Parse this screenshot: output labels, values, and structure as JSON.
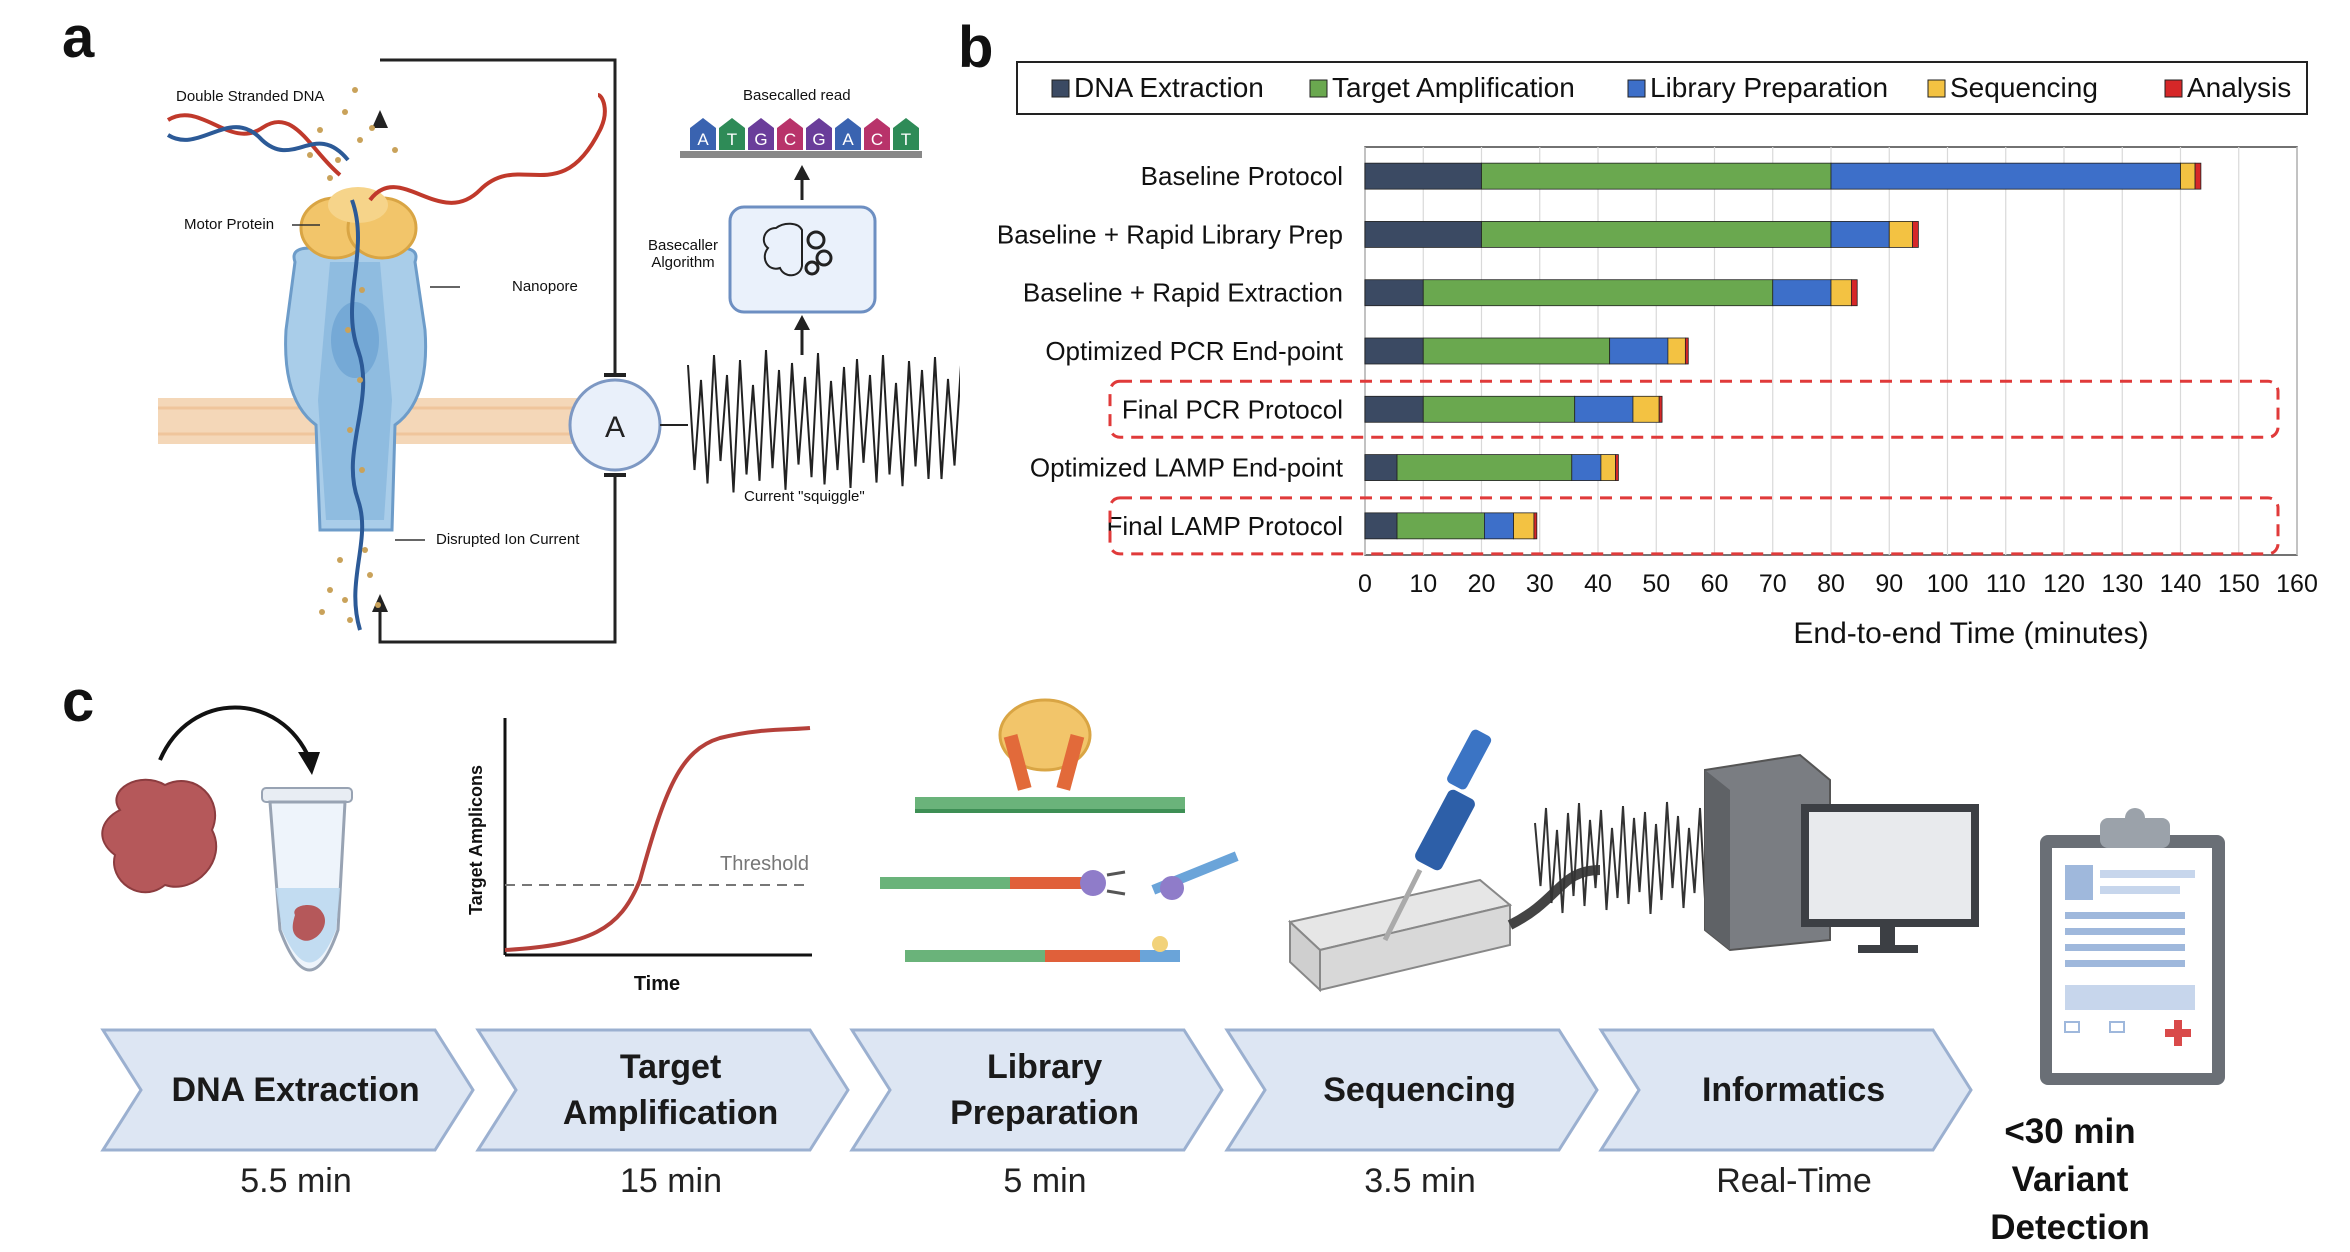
{
  "panels": {
    "a": "a",
    "b": "b",
    "c": "c"
  },
  "panel_a": {
    "labels": {
      "dsdna": "Double Stranded DNA",
      "motor": "Motor Protein",
      "nanopore": "Nanopore",
      "ion": "Disrupted Ion Current",
      "ammeter": "A",
      "basecaller_line1": "Basecaller",
      "basecaller_line2": "Algorithm",
      "basecalled_read": "Basecalled read",
      "squiggle": "Current \"squiggle\""
    },
    "bases": [
      {
        "letter": "A",
        "color": "#3a63b0"
      },
      {
        "letter": "T",
        "color": "#2e8b57"
      },
      {
        "letter": "G",
        "color": "#6a3d9a"
      },
      {
        "letter": "C",
        "color": "#b8336a"
      },
      {
        "letter": "G",
        "color": "#6a3d9a"
      },
      {
        "letter": "A",
        "color": "#3a63b0"
      },
      {
        "letter": "C",
        "color": "#b8336a"
      },
      {
        "letter": "T",
        "color": "#2e8b57"
      }
    ]
  },
  "chart_data": {
    "type": "bar",
    "orientation": "horizontal",
    "stacked": true,
    "categories": [
      "Baseline Protocol",
      "Baseline + Rapid Library Prep",
      "Baseline + Rapid Extraction",
      "Optimized PCR End-point",
      "Final PCR Protocol",
      "Optimized LAMP End-point",
      "Final LAMP Protocol"
    ],
    "series": [
      {
        "name": "DNA Extraction",
        "color": "#3b4a63",
        "values": [
          20,
          20,
          10,
          10,
          10,
          5.5,
          5.5
        ]
      },
      {
        "name": "Target Amplification",
        "color": "#6aa84f",
        "values": [
          60,
          60,
          60,
          32,
          26,
          30,
          15
        ]
      },
      {
        "name": "Library Preparation",
        "color": "#3d6fc9",
        "values": [
          60,
          10,
          10,
          10,
          10,
          5,
          5
        ]
      },
      {
        "name": "Sequencing",
        "color": "#f3c242",
        "values": [
          2.5,
          4,
          3.5,
          3,
          4.5,
          2.5,
          3.5
        ]
      },
      {
        "name": "Analysis",
        "color": "#d62728",
        "values": [
          1,
          1,
          1,
          0.5,
          0.5,
          0.5,
          0.5
        ]
      }
    ],
    "highlighted": [
      "Final PCR Protocol",
      "Final LAMP Protocol"
    ],
    "xlabel": "End-to-end Time (minutes)",
    "xlim": [
      0,
      160
    ],
    "xticks": [
      0,
      10,
      20,
      30,
      40,
      50,
      60,
      70,
      80,
      90,
      100,
      110,
      120,
      130,
      140,
      150,
      160
    ],
    "grid": "vertical",
    "legend": "top"
  },
  "panel_c": {
    "plot": {
      "ylabel": "Target Amplicons",
      "xlabel": "Time",
      "threshold": "Threshold"
    },
    "steps": [
      {
        "label": "DNA Extraction",
        "time": "5.5 min"
      },
      {
        "label": "Target\nAmplification",
        "time": "15 min"
      },
      {
        "label": "Library\nPreparation",
        "time": "5 min"
      },
      {
        "label": "Sequencing",
        "time": "3.5 min"
      },
      {
        "label": "Informatics",
        "time": "Real-Time"
      }
    ],
    "result_line1": "<30 min",
    "result_line2": "Variant Detection"
  },
  "colors": {
    "chevron_fill": "#dde6f3",
    "chevron_stroke": "#9bb0d0",
    "highlight_box": "#e03a3a"
  }
}
